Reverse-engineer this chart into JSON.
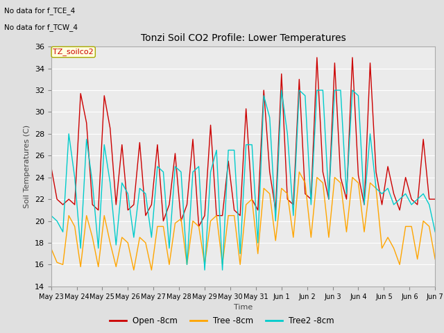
{
  "title": "Tonzi Soil CO2 Profile: Lower Temperatures",
  "ylabel": "Soil Temperatures (C)",
  "xlabel": "Time",
  "annotation_lines": [
    "No data for f_TCE_4",
    "No data for f_TCW_4"
  ],
  "legend_label": "TZ_soilco2",
  "ylim": [
    14,
    36
  ],
  "yticks": [
    14,
    16,
    18,
    20,
    22,
    24,
    26,
    28,
    30,
    32,
    34,
    36
  ],
  "xtick_labels": [
    "May 23",
    "May 24",
    "May 25",
    "May 26",
    "May 27",
    "May 28",
    "May 29",
    "May 30",
    "May 31",
    "Jun 1",
    "Jun 2",
    "Jun 3",
    "Jun 4",
    "Jun 5",
    "Jun 6",
    "Jun 7"
  ],
  "background_color": "#e0e0e0",
  "plot_bg_color": "#ebebeb",
  "line_colors": {
    "open": "#cc0000",
    "tree": "#ffa500",
    "tree2": "#00cccc"
  },
  "legend_entries": [
    "Open -8cm",
    "Tree -8cm",
    "Tree2 -8cm"
  ],
  "open_data": [
    25.0,
    22.0,
    21.5,
    22.0,
    21.5,
    31.7,
    29.0,
    21.5,
    21.0,
    31.5,
    28.5,
    21.5,
    27.0,
    21.0,
    21.5,
    27.2,
    20.5,
    21.5,
    27.0,
    20.0,
    21.5,
    26.2,
    20.0,
    21.5,
    27.5,
    19.5,
    20.5,
    28.8,
    20.5,
    20.5,
    25.5,
    21.0,
    20.5,
    30.3,
    22.0,
    21.0,
    32.0,
    24.5,
    21.0,
    33.5,
    22.0,
    21.5,
    33.0,
    22.5,
    22.0,
    35.0,
    24.5,
    22.0,
    34.5,
    24.0,
    22.0,
    35.0,
    24.2,
    21.5,
    34.5,
    24.5,
    21.5,
    25.0,
    22.5,
    21.0,
    24.0,
    22.0,
    21.5,
    27.5,
    22.0,
    22.0
  ],
  "tree_data": [
    17.5,
    16.2,
    16.0,
    20.5,
    19.5,
    15.8,
    20.5,
    18.5,
    15.8,
    20.5,
    18.0,
    15.8,
    18.5,
    18.0,
    15.5,
    18.5,
    18.0,
    15.5,
    19.5,
    19.5,
    16.0,
    19.8,
    20.2,
    16.0,
    20.0,
    19.5,
    16.0,
    20.0,
    20.5,
    16.0,
    20.5,
    20.5,
    16.0,
    21.5,
    22.0,
    17.0,
    23.0,
    22.5,
    18.2,
    23.0,
    22.5,
    18.5,
    24.5,
    23.5,
    18.5,
    24.0,
    23.5,
    18.5,
    24.0,
    23.5,
    19.0,
    24.0,
    23.5,
    19.0,
    23.5,
    23.0,
    17.5,
    18.5,
    17.5,
    16.0,
    19.5,
    19.5,
    16.5,
    20.0,
    19.5,
    16.5
  ],
  "tree2_data": [
    20.5,
    20.0,
    19.0,
    28.0,
    24.0,
    17.5,
    27.5,
    23.5,
    17.5,
    27.0,
    23.5,
    17.8,
    23.5,
    22.5,
    18.5,
    23.0,
    22.5,
    18.5,
    25.0,
    24.5,
    17.5,
    25.0,
    24.5,
    16.0,
    24.5,
    25.0,
    15.5,
    24.5,
    26.5,
    15.5,
    26.5,
    26.5,
    17.0,
    27.0,
    27.0,
    18.0,
    31.5,
    29.5,
    20.0,
    32.0,
    28.0,
    20.5,
    32.0,
    31.5,
    21.5,
    32.0,
    32.0,
    22.0,
    32.0,
    32.0,
    22.5,
    32.0,
    31.5,
    21.5,
    28.0,
    23.0,
    22.5,
    23.0,
    21.5,
    22.0,
    22.5,
    21.5,
    22.0,
    22.5,
    21.5,
    19.0
  ]
}
